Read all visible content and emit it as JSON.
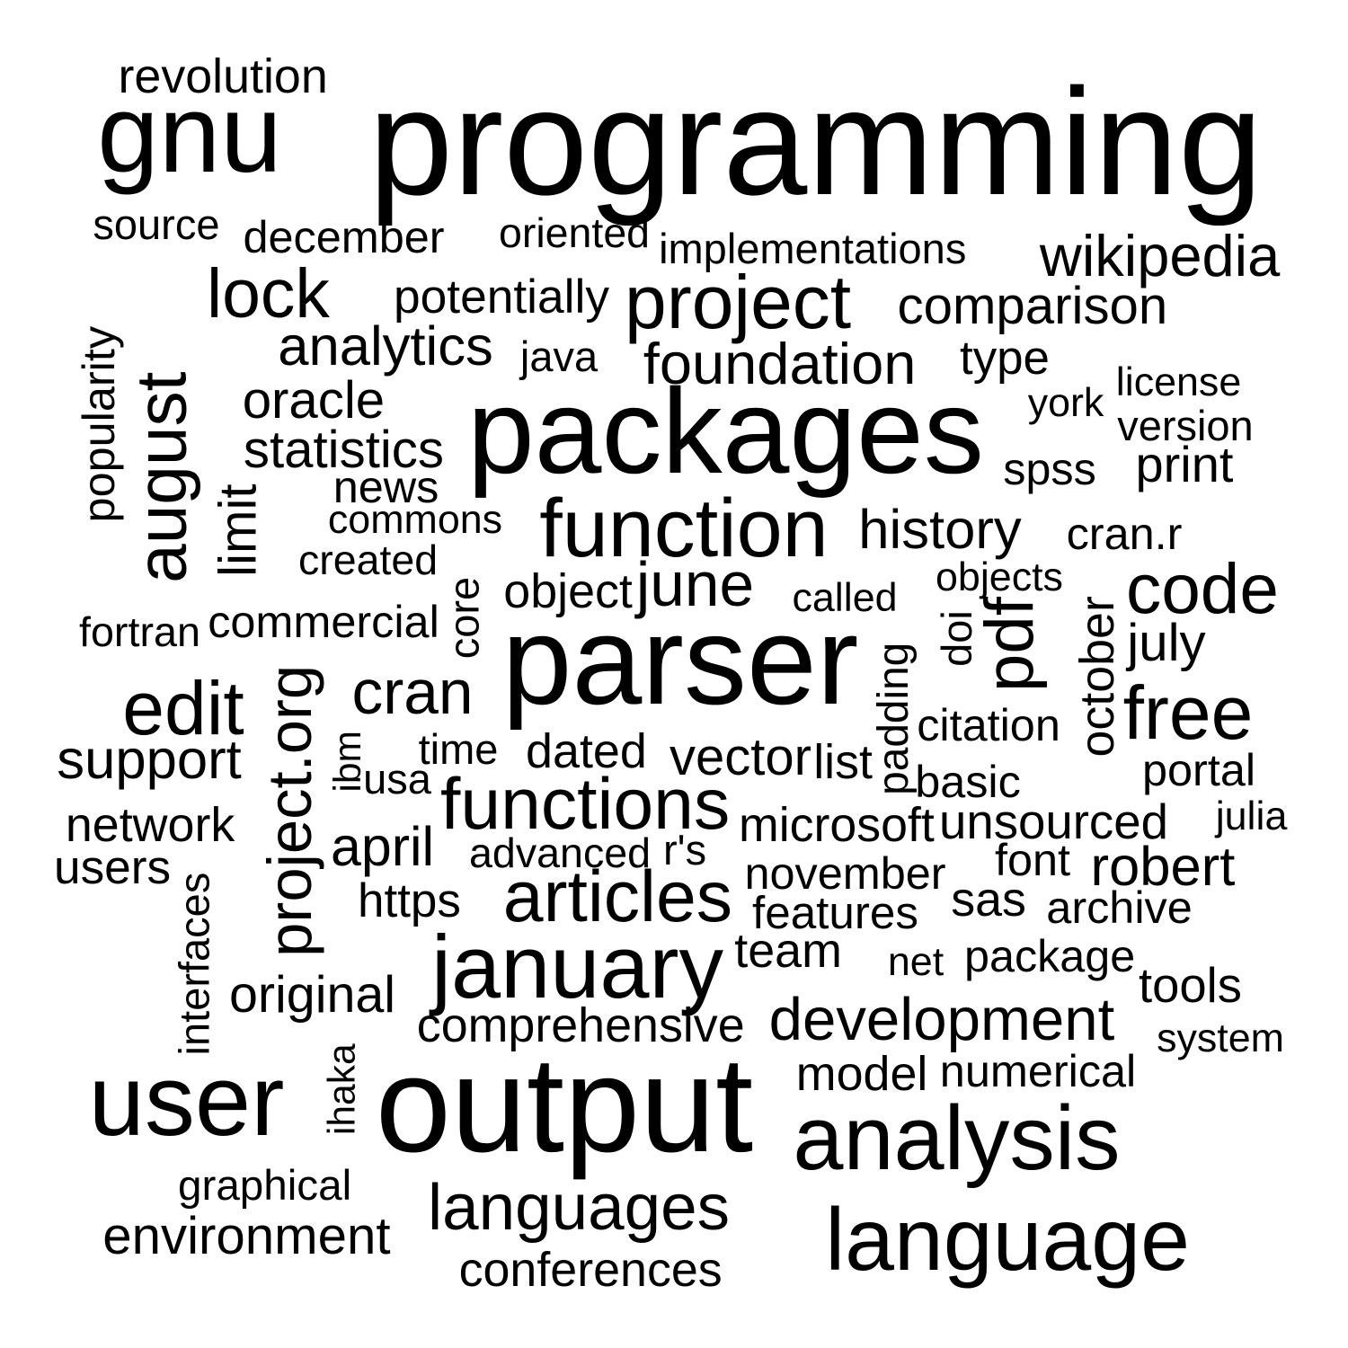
{
  "text_color": "#000000",
  "background_color": "#ffffff",
  "words": [
    {
      "text": "programming",
      "vertical": false
    },
    {
      "text": "revolution",
      "vertical": false
    },
    {
      "text": "gnu",
      "vertical": false
    },
    {
      "text": "source",
      "vertical": false
    },
    {
      "text": "december",
      "vertical": false
    },
    {
      "text": "oriented",
      "vertical": false
    },
    {
      "text": "implementations",
      "vertical": false
    },
    {
      "text": "wikipedia",
      "vertical": false
    },
    {
      "text": "lock",
      "vertical": false
    },
    {
      "text": "potentially",
      "vertical": false
    },
    {
      "text": "project",
      "vertical": false
    },
    {
      "text": "comparison",
      "vertical": false
    },
    {
      "text": "analytics",
      "vertical": false
    },
    {
      "text": "java",
      "vertical": false
    },
    {
      "text": "foundation",
      "vertical": false
    },
    {
      "text": "type",
      "vertical": false
    },
    {
      "text": "license",
      "vertical": false
    },
    {
      "text": "york",
      "vertical": false
    },
    {
      "text": "oracle",
      "vertical": false
    },
    {
      "text": "packages",
      "vertical": false
    },
    {
      "text": "version",
      "vertical": false
    },
    {
      "text": "statistics",
      "vertical": false
    },
    {
      "text": "spss",
      "vertical": false
    },
    {
      "text": "print",
      "vertical": false
    },
    {
      "text": "news",
      "vertical": false
    },
    {
      "text": "commons",
      "vertical": false
    },
    {
      "text": "function",
      "vertical": false
    },
    {
      "text": "history",
      "vertical": false
    },
    {
      "text": "cran.r",
      "vertical": false
    },
    {
      "text": "created",
      "vertical": false
    },
    {
      "text": "objects",
      "vertical": false
    },
    {
      "text": "object",
      "vertical": false
    },
    {
      "text": "june",
      "vertical": false
    },
    {
      "text": "called",
      "vertical": false
    },
    {
      "text": "code",
      "vertical": false
    },
    {
      "text": "fortran",
      "vertical": false
    },
    {
      "text": "commercial",
      "vertical": false
    },
    {
      "text": "parser",
      "vertical": false
    },
    {
      "text": "july",
      "vertical": false
    },
    {
      "text": "edit",
      "vertical": false
    },
    {
      "text": "cran",
      "vertical": false
    },
    {
      "text": "free",
      "vertical": false
    },
    {
      "text": "citation",
      "vertical": false
    },
    {
      "text": "support",
      "vertical": false
    },
    {
      "text": "time",
      "vertical": false
    },
    {
      "text": "dated",
      "vertical": false
    },
    {
      "text": "vector",
      "vertical": false
    },
    {
      "text": "list",
      "vertical": false
    },
    {
      "text": "portal",
      "vertical": false
    },
    {
      "text": "usa",
      "vertical": false
    },
    {
      "text": "basic",
      "vertical": false
    },
    {
      "text": "functions",
      "vertical": false
    },
    {
      "text": "network",
      "vertical": false
    },
    {
      "text": "microsoft",
      "vertical": false
    },
    {
      "text": "unsourced",
      "vertical": false
    },
    {
      "text": "julia",
      "vertical": false
    },
    {
      "text": "april",
      "vertical": false
    },
    {
      "text": "advanced",
      "vertical": false
    },
    {
      "text": "r's",
      "vertical": false
    },
    {
      "text": "users",
      "vertical": false
    },
    {
      "text": "font",
      "vertical": false
    },
    {
      "text": "robert",
      "vertical": false
    },
    {
      "text": "november",
      "vertical": false
    },
    {
      "text": "https",
      "vertical": false
    },
    {
      "text": "articles",
      "vertical": false
    },
    {
      "text": "sas",
      "vertical": false
    },
    {
      "text": "archive",
      "vertical": false
    },
    {
      "text": "features",
      "vertical": false
    },
    {
      "text": "team",
      "vertical": false
    },
    {
      "text": "january",
      "vertical": false
    },
    {
      "text": "net",
      "vertical": false
    },
    {
      "text": "package",
      "vertical": false
    },
    {
      "text": "tools",
      "vertical": false
    },
    {
      "text": "original",
      "vertical": false
    },
    {
      "text": "development",
      "vertical": false
    },
    {
      "text": "comprehensive",
      "vertical": false
    },
    {
      "text": "system",
      "vertical": false
    },
    {
      "text": "model",
      "vertical": false
    },
    {
      "text": "numerical",
      "vertical": false
    },
    {
      "text": "user",
      "vertical": false
    },
    {
      "text": "output",
      "vertical": false
    },
    {
      "text": "analysis",
      "vertical": false
    },
    {
      "text": "graphical",
      "vertical": false
    },
    {
      "text": "languages",
      "vertical": false
    },
    {
      "text": "environment",
      "vertical": false
    },
    {
      "text": "language",
      "vertical": false
    },
    {
      "text": "conferences",
      "vertical": false
    },
    {
      "text": "popularity",
      "vertical": true
    },
    {
      "text": "august",
      "vertical": true
    },
    {
      "text": "limit",
      "vertical": true
    },
    {
      "text": "core",
      "vertical": true
    },
    {
      "text": "project.org",
      "vertical": true
    },
    {
      "text": "ibm",
      "vertical": true
    },
    {
      "text": "interfaces",
      "vertical": true
    },
    {
      "text": "ihaka",
      "vertical": true
    },
    {
      "text": "padding",
      "vertical": true
    },
    {
      "text": "doi",
      "vertical": true
    },
    {
      "text": "pdf",
      "vertical": true
    },
    {
      "text": "october",
      "vertical": true
    }
  ]
}
